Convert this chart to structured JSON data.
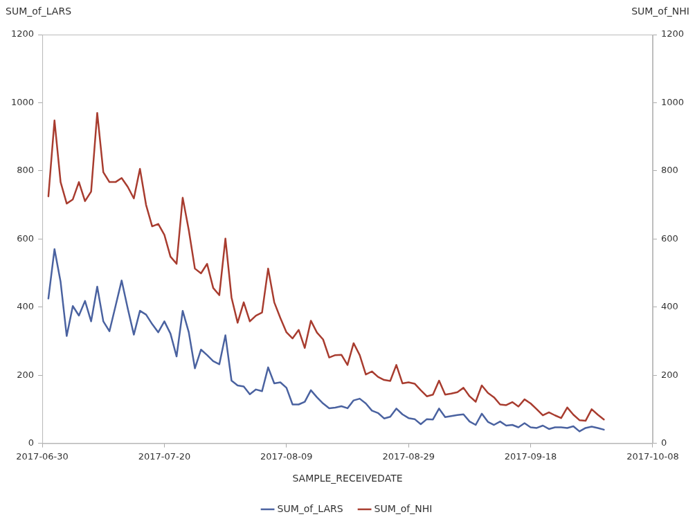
{
  "chart_data": {
    "type": "line",
    "xlabel": "SAMPLE_RECEIVEDATE",
    "ylabel": "SUM_of_LARS",
    "y2label": "SUM_of_NHI",
    "x": [
      "2017-07-01",
      "2017-07-02",
      "2017-07-03",
      "2017-07-04",
      "2017-07-05",
      "2017-07-06",
      "2017-07-07",
      "2017-07-08",
      "2017-07-09",
      "2017-07-10",
      "2017-07-11",
      "2017-07-12",
      "2017-07-13",
      "2017-07-14",
      "2017-07-15",
      "2017-07-16",
      "2017-07-17",
      "2017-07-18",
      "2017-07-19",
      "2017-07-20",
      "2017-07-21",
      "2017-07-22",
      "2017-07-23",
      "2017-07-24",
      "2017-07-25",
      "2017-07-26",
      "2017-07-27",
      "2017-07-28",
      "2017-07-29",
      "2017-07-30",
      "2017-07-31",
      "2017-08-01",
      "2017-08-02",
      "2017-08-03",
      "2017-08-04",
      "2017-08-05",
      "2017-08-06",
      "2017-08-07",
      "2017-08-08",
      "2017-08-09",
      "2017-08-10",
      "2017-08-11",
      "2017-08-12",
      "2017-08-13",
      "2017-08-14",
      "2017-08-15",
      "2017-08-16",
      "2017-08-17",
      "2017-08-18",
      "2017-08-19",
      "2017-08-20",
      "2017-08-21",
      "2017-08-22",
      "2017-08-23",
      "2017-08-24",
      "2017-08-25",
      "2017-08-26",
      "2017-08-27",
      "2017-08-28",
      "2017-08-29",
      "2017-08-30",
      "2017-08-31",
      "2017-09-01",
      "2017-09-02",
      "2017-09-03",
      "2017-09-04",
      "2017-09-05",
      "2017-09-06",
      "2017-09-07",
      "2017-09-08",
      "2017-09-09",
      "2017-09-10",
      "2017-09-11",
      "2017-09-12",
      "2017-09-13",
      "2017-09-14",
      "2017-09-15",
      "2017-09-16",
      "2017-09-17",
      "2017-09-18",
      "2017-09-19",
      "2017-09-20",
      "2017-09-21",
      "2017-09-22",
      "2017-09-23",
      "2017-09-24",
      "2017-09-25",
      "2017-09-26",
      "2017-09-27",
      "2017-09-28",
      "2017-09-29",
      "2017-09-30"
    ],
    "series": [
      {
        "name": "SUM_of_LARS",
        "color": "#4a62a0",
        "values": [
          425,
          570,
          474,
          315,
          403,
          375,
          418,
          358,
          460,
          358,
          329,
          403,
          478,
          396,
          319,
          389,
          378,
          350,
          326,
          358,
          322,
          255,
          389,
          326,
          220,
          275,
          259,
          241,
          232,
          317,
          184,
          170,
          167,
          144,
          158,
          153,
          223,
          176,
          179,
          163,
          114,
          114,
          122,
          156,
          135,
          117,
          103,
          105,
          109,
          103,
          126,
          131,
          117,
          96,
          89,
          73,
          78,
          102,
          85,
          74,
          71,
          56,
          71,
          70,
          102,
          77,
          80,
          83,
          85,
          64,
          54,
          87,
          63,
          54,
          64,
          52,
          54,
          47,
          59,
          47,
          45,
          52,
          42,
          47,
          47,
          45,
          50,
          35,
          45,
          49,
          45,
          40
        ]
      },
      {
        "name": "SUM_of_NHI",
        "color": "#a83c2f",
        "axis": "y2",
        "values": [
          725,
          948,
          767,
          704,
          716,
          767,
          711,
          739,
          970,
          796,
          767,
          767,
          779,
          753,
          719,
          806,
          700,
          637,
          644,
          612,
          548,
          527,
          721,
          626,
          513,
          499,
          527,
          456,
          435,
          601,
          428,
          354,
          414,
          358,
          375,
          384,
          513,
          414,
          368,
          326,
          308,
          333,
          280,
          360,
          325,
          305,
          252,
          259,
          260,
          230,
          294,
          259,
          202,
          211,
          195,
          186,
          183,
          230,
          176,
          179,
          175,
          156,
          138,
          143,
          184,
          143,
          146,
          150,
          163,
          138,
          122,
          170,
          148,
          135,
          114,
          112,
          121,
          108,
          129,
          117,
          100,
          82,
          91,
          82,
          74,
          105,
          84,
          68,
          66,
          100,
          84,
          70
        ]
      }
    ],
    "xlim": [
      "2017-06-30",
      "2017-10-08"
    ],
    "xticks": [
      "2017-06-30",
      "2017-07-20",
      "2017-08-09",
      "2017-08-29",
      "2017-09-18",
      "2017-10-08"
    ],
    "ylim": [
      0,
      1200
    ],
    "yticks": [
      0,
      200,
      400,
      600,
      800,
      1000,
      1200
    ],
    "y2lim": [
      0,
      1200
    ],
    "y2ticks": [
      0,
      200,
      400,
      600,
      800,
      1000,
      1200
    ],
    "grid": false,
    "legend": "bottom",
    "marker": "none",
    "line_style": "solid"
  }
}
